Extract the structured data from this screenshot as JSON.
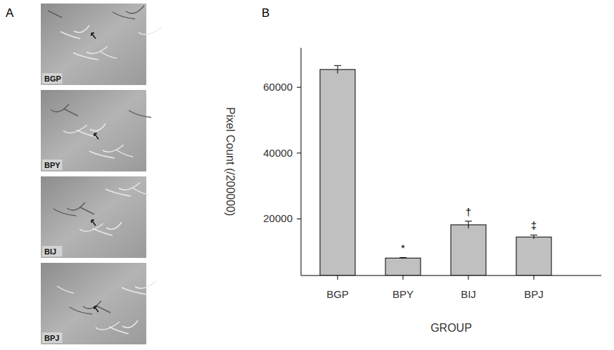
{
  "panel_a": {
    "letter": "A",
    "images": [
      "BGP",
      "BPY",
      "BIJ",
      "BPJ"
    ]
  },
  "panel_b": {
    "letter": "B"
  },
  "chart_data": {
    "type": "bar",
    "categories": [
      "BGP",
      "BPY",
      "BIJ",
      "BPJ"
    ],
    "values": [
      65400,
      8100,
      18200,
      14500
    ],
    "errors": [
      1200,
      150,
      1100,
      600
    ],
    "significance": [
      null,
      "*",
      "†",
      "‡"
    ],
    "color": "#c0c0c0",
    "x_label": "GROUP",
    "y_label": "Pixel Count (/200000)",
    "ylim": [
      2800,
      72000
    ],
    "yticks": [
      20000,
      40000,
      60000
    ],
    "grid": false
  }
}
